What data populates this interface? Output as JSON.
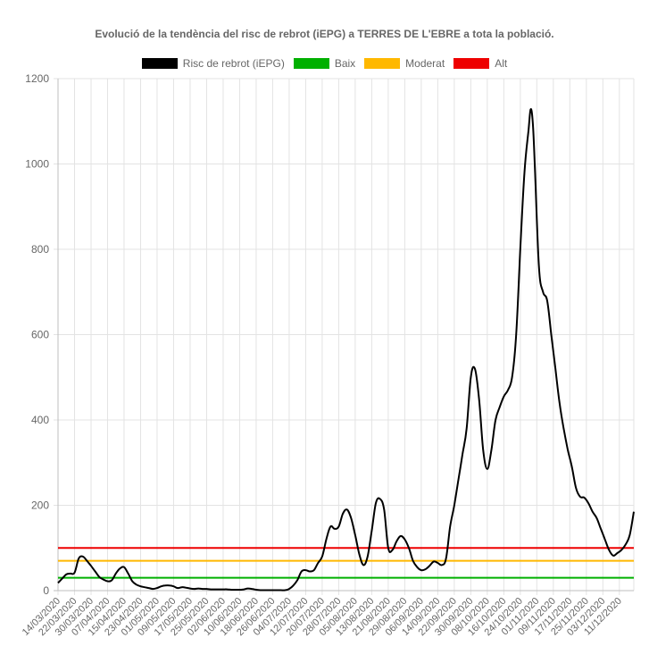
{
  "chart_data": {
    "type": "line",
    "title": "Evolució de la tendència del risc de rebrot (iEPG) a TERRES DE L'EBRE a tota la població.",
    "ylim": [
      0,
      1200
    ],
    "yticks": [
      0,
      200,
      400,
      600,
      800,
      1000,
      1200
    ],
    "grid": true,
    "legend_position": "top",
    "x_start": "14/03/2020",
    "x_end": "18/12/2020",
    "x_tick_labels": [
      "14/03/2020",
      "22/03/2020",
      "30/03/2020",
      "07/04/2020",
      "15/04/2020",
      "23/04/2020",
      "01/05/2020",
      "09/05/2020",
      "17/05/2020",
      "25/05/2020",
      "02/06/2020",
      "10/06/2020",
      "18/06/2020",
      "26/06/2020",
      "04/07/2020",
      "12/07/2020",
      "20/07/2020",
      "28/07/2020",
      "05/08/2020",
      "13/08/2020",
      "21/08/2020",
      "29/08/2020",
      "06/09/2020",
      "14/09/2020",
      "22/09/2020",
      "30/09/2020",
      "08/10/2020",
      "16/10/2020",
      "24/10/2020",
      "01/11/2020",
      "09/11/2020",
      "17/11/2020",
      "25/11/2020",
      "03/12/2020",
      "11/12/2020"
    ],
    "series": [
      {
        "name": "Risc de rebrot (iEPG)",
        "color": "#000000",
        "points": [
          [
            "14/03/2020",
            18
          ],
          [
            "16/03/2020",
            28
          ],
          [
            "18/03/2020",
            38
          ],
          [
            "20/03/2020",
            40
          ],
          [
            "22/03/2020",
            42
          ],
          [
            "24/03/2020",
            75
          ],
          [
            "26/03/2020",
            80
          ],
          [
            "28/03/2020",
            70
          ],
          [
            "30/03/2020",
            58
          ],
          [
            "01/04/2020",
            45
          ],
          [
            "03/04/2020",
            32
          ],
          [
            "05/04/2020",
            26
          ],
          [
            "07/04/2020",
            22
          ],
          [
            "09/04/2020",
            24
          ],
          [
            "11/04/2020",
            40
          ],
          [
            "13/04/2020",
            52
          ],
          [
            "15/04/2020",
            55
          ],
          [
            "17/04/2020",
            40
          ],
          [
            "19/04/2020",
            22
          ],
          [
            "21/04/2020",
            14
          ],
          [
            "23/04/2020",
            10
          ],
          [
            "25/04/2020",
            8
          ],
          [
            "27/04/2020",
            6
          ],
          [
            "29/04/2020",
            4
          ],
          [
            "01/05/2020",
            6
          ],
          [
            "03/05/2020",
            10
          ],
          [
            "05/05/2020",
            12
          ],
          [
            "07/05/2020",
            12
          ],
          [
            "09/05/2020",
            10
          ],
          [
            "11/05/2020",
            6
          ],
          [
            "13/05/2020",
            8
          ],
          [
            "15/05/2020",
            7
          ],
          [
            "17/05/2020",
            5
          ],
          [
            "19/05/2020",
            4
          ],
          [
            "21/05/2020",
            5
          ],
          [
            "23/05/2020",
            4
          ],
          [
            "25/05/2020",
            4
          ],
          [
            "27/05/2020",
            3
          ],
          [
            "29/05/2020",
            3
          ],
          [
            "31/05/2020",
            3
          ],
          [
            "02/06/2020",
            3
          ],
          [
            "04/06/2020",
            3
          ],
          [
            "06/06/2020",
            2
          ],
          [
            "08/06/2020",
            2
          ],
          [
            "10/06/2020",
            2
          ],
          [
            "12/06/2020",
            3
          ],
          [
            "14/06/2020",
            5
          ],
          [
            "16/06/2020",
            4
          ],
          [
            "18/06/2020",
            2
          ],
          [
            "20/06/2020",
            1
          ],
          [
            "22/06/2020",
            1
          ],
          [
            "24/06/2020",
            1
          ],
          [
            "26/06/2020",
            1
          ],
          [
            "28/06/2020",
            1
          ],
          [
            "30/06/2020",
            1
          ],
          [
            "02/07/2020",
            1
          ],
          [
            "04/07/2020",
            4
          ],
          [
            "06/07/2020",
            12
          ],
          [
            "08/07/2020",
            25
          ],
          [
            "10/07/2020",
            45
          ],
          [
            "12/07/2020",
            48
          ],
          [
            "14/07/2020",
            45
          ],
          [
            "16/07/2020",
            48
          ],
          [
            "18/07/2020",
            65
          ],
          [
            "20/07/2020",
            80
          ],
          [
            "22/07/2020",
            120
          ],
          [
            "24/07/2020",
            150
          ],
          [
            "26/07/2020",
            145
          ],
          [
            "28/07/2020",
            150
          ],
          [
            "30/07/2020",
            180
          ],
          [
            "01/08/2020",
            190
          ],
          [
            "03/08/2020",
            170
          ],
          [
            "05/08/2020",
            130
          ],
          [
            "07/08/2020",
            85
          ],
          [
            "09/08/2020",
            60
          ],
          [
            "11/08/2020",
            80
          ],
          [
            "13/08/2020",
            140
          ],
          [
            "15/08/2020",
            205
          ],
          [
            "17/08/2020",
            215
          ],
          [
            "19/08/2020",
            190
          ],
          [
            "21/08/2020",
            100
          ],
          [
            "23/08/2020",
            95
          ],
          [
            "25/08/2020",
            115
          ],
          [
            "27/08/2020",
            128
          ],
          [
            "29/08/2020",
            120
          ],
          [
            "31/08/2020",
            100
          ],
          [
            "02/09/2020",
            70
          ],
          [
            "04/09/2020",
            55
          ],
          [
            "06/09/2020",
            48
          ],
          [
            "08/09/2020",
            50
          ],
          [
            "10/09/2020",
            58
          ],
          [
            "12/09/2020",
            68
          ],
          [
            "14/09/2020",
            65
          ],
          [
            "16/09/2020",
            60
          ],
          [
            "18/09/2020",
            75
          ],
          [
            "20/09/2020",
            150
          ],
          [
            "22/09/2020",
            200
          ],
          [
            "24/09/2020",
            260
          ],
          [
            "26/09/2020",
            320
          ],
          [
            "28/09/2020",
            380
          ],
          [
            "30/09/2020",
            500
          ],
          [
            "02/10/2020",
            520
          ],
          [
            "04/10/2020",
            450
          ],
          [
            "06/10/2020",
            330
          ],
          [
            "08/10/2020",
            285
          ],
          [
            "10/10/2020",
            330
          ],
          [
            "12/10/2020",
            400
          ],
          [
            "14/10/2020",
            430
          ],
          [
            "16/10/2020",
            455
          ],
          [
            "18/10/2020",
            470
          ],
          [
            "20/10/2020",
            500
          ],
          [
            "22/10/2020",
            600
          ],
          [
            "24/10/2020",
            800
          ],
          [
            "26/10/2020",
            980
          ],
          [
            "28/10/2020",
            1080
          ],
          [
            "29/10/2020",
            1128
          ],
          [
            "30/10/2020",
            1100
          ],
          [
            "31/10/2020",
            1000
          ],
          [
            "02/11/2020",
            760
          ],
          [
            "04/11/2020",
            700
          ],
          [
            "06/11/2020",
            680
          ],
          [
            "08/11/2020",
            600
          ],
          [
            "10/11/2020",
            520
          ],
          [
            "12/11/2020",
            440
          ],
          [
            "14/11/2020",
            380
          ],
          [
            "16/11/2020",
            330
          ],
          [
            "18/11/2020",
            290
          ],
          [
            "20/11/2020",
            240
          ],
          [
            "22/11/2020",
            220
          ],
          [
            "24/11/2020",
            218
          ],
          [
            "26/11/2020",
            205
          ],
          [
            "28/11/2020",
            185
          ],
          [
            "30/11/2020",
            170
          ],
          [
            "02/12/2020",
            145
          ],
          [
            "04/12/2020",
            120
          ],
          [
            "06/12/2020",
            95
          ],
          [
            "08/12/2020",
            82
          ],
          [
            "10/12/2020",
            88
          ],
          [
            "12/12/2020",
            95
          ],
          [
            "14/12/2020",
            108
          ],
          [
            "16/12/2020",
            130
          ],
          [
            "18/12/2020",
            185
          ]
        ]
      },
      {
        "name": "Baix",
        "color": "#00b000",
        "value": 30
      },
      {
        "name": "Moderat",
        "color": "#ffb800",
        "value": 70
      },
      {
        "name": "Alt",
        "color": "#ee0000",
        "value": 100
      }
    ]
  }
}
